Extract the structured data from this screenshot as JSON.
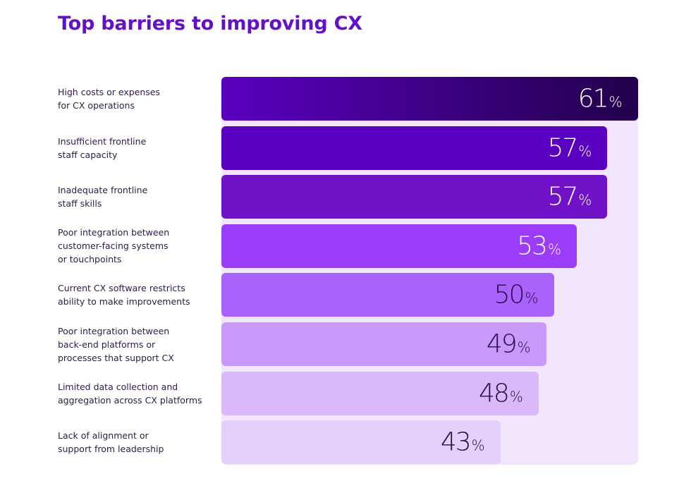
{
  "chart_data": {
    "type": "bar",
    "orientation": "horizontal",
    "title": "Top barriers to improving CX",
    "value_suffix": "%",
    "categories": [
      "High costs or expenses for CX operations",
      "Insufficient frontline staff capacity",
      "Inadequate frontline staff skills",
      "Poor integration between customer-facing systems or touchpoints",
      "Current CX software restricts ability to make improvements",
      "Poor integration between back-end platforms or processes that support CX",
      "Limited data collection and aggregation across CX platforms",
      "Lack of alignment or support from leadership"
    ],
    "category_lines": [
      [
        "High costs or expenses",
        "for CX operations"
      ],
      [
        "Insufficient frontline",
        "staff capacity"
      ],
      [
        "Inadequate frontline",
        "staff skills"
      ],
      [
        "Poor integration between",
        "customer-facing systems",
        "or touchpoints"
      ],
      [
        "Current CX software restricts",
        "ability to make improvements"
      ],
      [
        "Poor integration between",
        "back-end platforms or",
        "processes that support CX"
      ],
      [
        "Limited data collection and",
        "aggregation across CX platforms"
      ],
      [
        "Lack of alignment or",
        "support from leadership"
      ]
    ],
    "values": [
      61,
      57,
      57,
      53,
      50,
      49,
      48,
      43
    ],
    "bar_colors": [
      "#5a00c0",
      "#5a00c0",
      "#7012c8",
      "#9b3cf8",
      "#a963fa",
      "#c89bfb",
      "#dbb8fb",
      "#e5cffc"
    ],
    "first_bar_gradient_end": "#22004a",
    "label_colors": [
      "#ffffff",
      "#ffffff",
      "#ffffff",
      "#ffffff",
      "#2a0a4a",
      "#2a0a4a",
      "#2a0a4a",
      "#2a0a4a"
    ],
    "panel_color": "#f1e6fd",
    "title_color": "#6410c8",
    "xlabel": "",
    "ylabel": "",
    "grid": false
  }
}
